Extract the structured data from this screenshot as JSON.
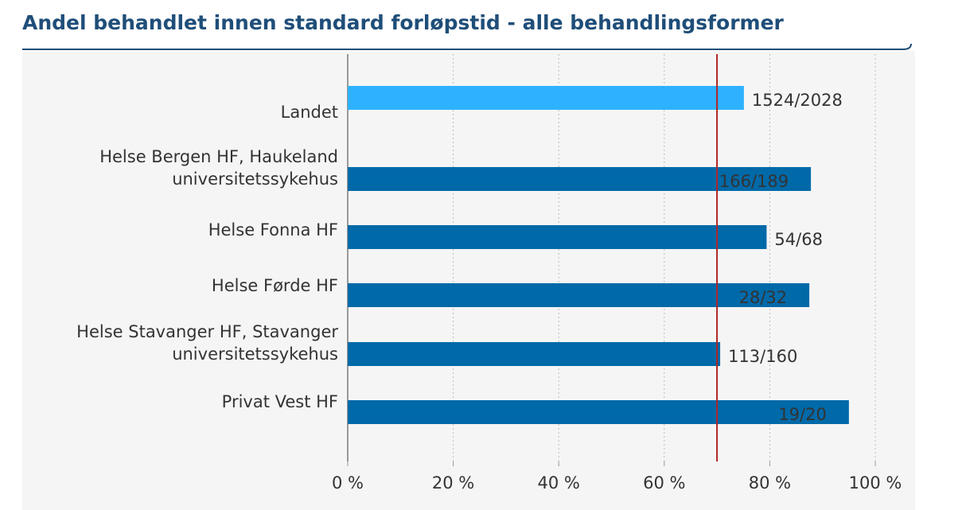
{
  "chart_data": {
    "type": "bar",
    "orientation": "horizontal",
    "title": "Andel behandlet innen standard forløpstid - alle behandlingsformer",
    "categories": [
      "Landet",
      "Helse Bergen HF, Haukeland\nuniversitetssykehus",
      "Helse Fonna HF",
      "Helse Førde HF",
      "Helse Stavanger HF, Stavanger\nuniversitetssykehus",
      "Privat Vest HF"
    ],
    "values": [
      75.1,
      87.8,
      79.4,
      87.5,
      70.6,
      95
    ],
    "value_labels": [
      "1524/2028",
      "166/189",
      "54/68",
      "28/32",
      "113/160",
      "19/20"
    ],
    "colors": [
      "#2eb2ff",
      "#0069a8",
      "#0069a8",
      "#0069a8",
      "#0069a8",
      "#0069a8"
    ],
    "xlim": [
      0,
      100
    ],
    "xticks": [
      {
        "value": 0,
        "label": "0 %"
      },
      {
        "value": 20,
        "label": "20 %"
      },
      {
        "value": 40,
        "label": "40 %"
      },
      {
        "value": 60,
        "label": "60 %"
      },
      {
        "value": 80,
        "label": "80 %"
      },
      {
        "value": 100,
        "label": "100 %"
      }
    ],
    "reference_line": {
      "value": 70,
      "color": "#b22222"
    },
    "grid": true
  }
}
